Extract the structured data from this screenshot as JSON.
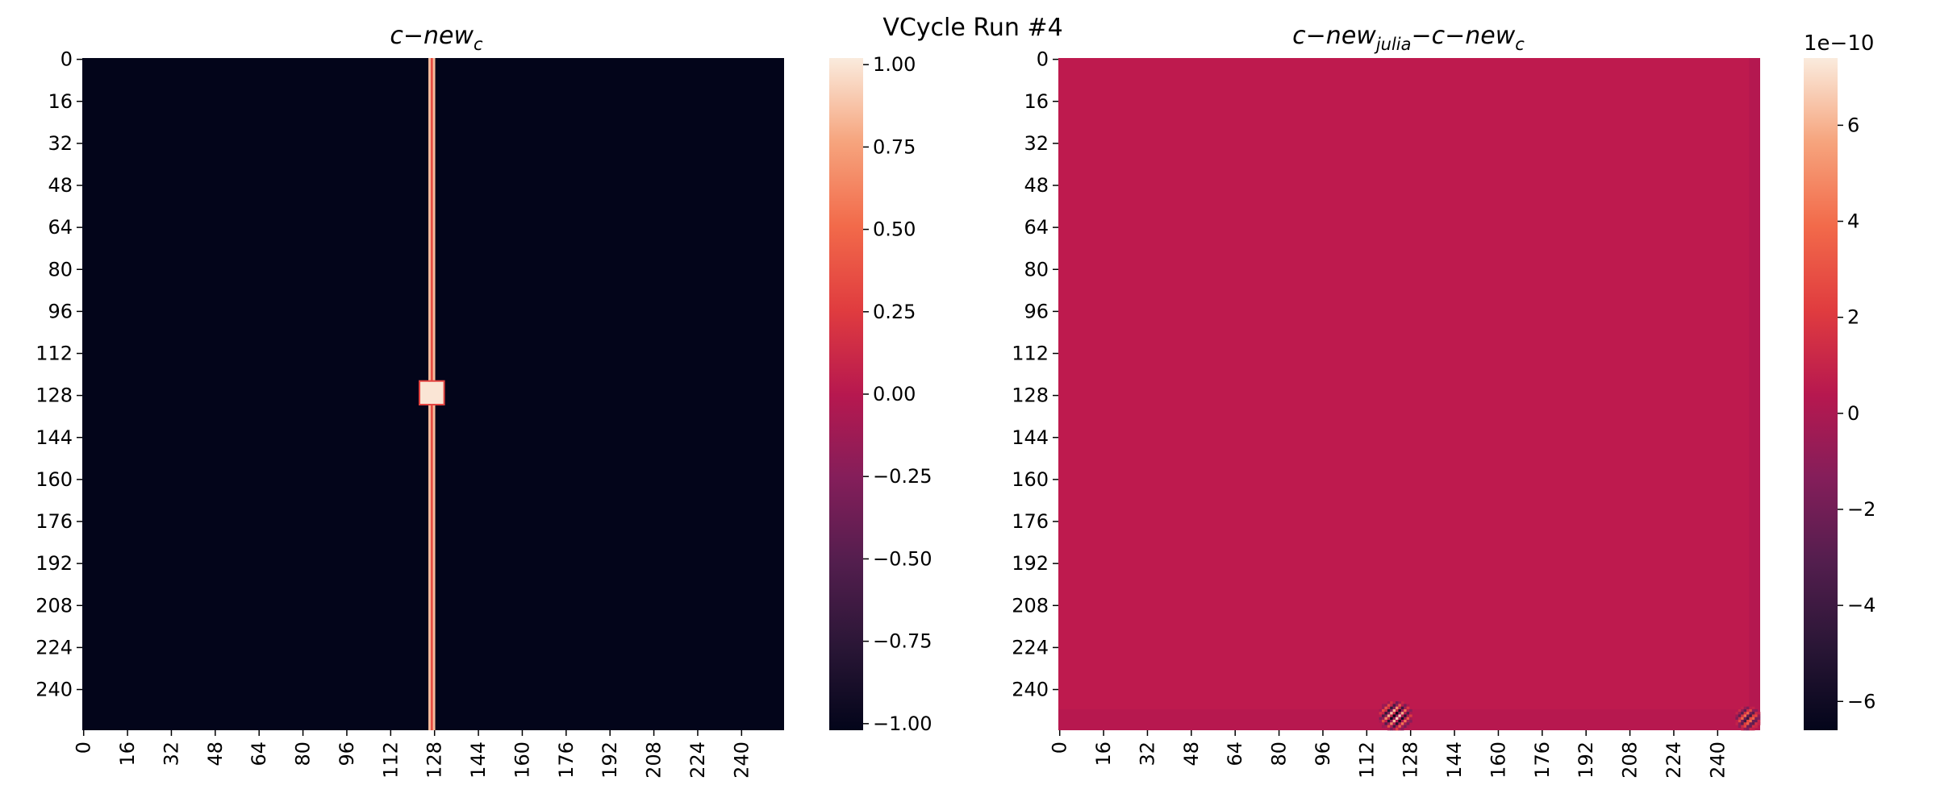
{
  "figure": {
    "suptitle": "VCycle Run #4"
  },
  "chart_data": [
    {
      "type": "heatmap",
      "title": "c−new_c",
      "title_main": "c−new",
      "title_sub": "c",
      "xlabel": "",
      "ylabel": "",
      "grid_size": 256,
      "xlim": [
        0,
        256
      ],
      "ylim": [
        0,
        256
      ],
      "x_tick_labels": [
        "0",
        "16",
        "32",
        "48",
        "64",
        "80",
        "96",
        "112",
        "128",
        "144",
        "160",
        "176",
        "192",
        "208",
        "224",
        "240"
      ],
      "y_tick_labels": [
        "0",
        "16",
        "32",
        "48",
        "64",
        "80",
        "96",
        "112",
        "128",
        "144",
        "160",
        "176",
        "192",
        "208",
        "224",
        "240"
      ],
      "background_value": -1.0,
      "features": [
        {
          "kind": "vertical_line",
          "col": 127,
          "value": 0.35,
          "outline_value": 0.85
        },
        {
          "kind": "square",
          "row_range": [
            123,
            132
          ],
          "col_range": [
            123,
            132
          ],
          "value": 1.0
        }
      ],
      "colorbar": {
        "colormap": "rocket",
        "range": [
          -1.02,
          1.02
        ],
        "ticks": [
          1.0,
          0.75,
          0.5,
          0.25,
          0.0,
          -0.25,
          -0.5,
          -0.75,
          -1.0
        ],
        "tick_labels": [
          "1.00",
          "0.75",
          "0.50",
          "0.25",
          "0.00",
          "−0.25",
          "−0.50",
          "−0.75",
          "−1.00"
        ]
      }
    },
    {
      "type": "heatmap",
      "title": "c−new_julia−c−new_c",
      "title_part1": "c−new",
      "title_sub1": "julia",
      "title_part2": "−c−new",
      "title_sub2": "c",
      "xlabel": "",
      "ylabel": "",
      "grid_size": 256,
      "xlim": [
        0,
        256
      ],
      "ylim": [
        0,
        256
      ],
      "x_tick_labels": [
        "0",
        "16",
        "32",
        "48",
        "64",
        "80",
        "96",
        "112",
        "128",
        "144",
        "160",
        "176",
        "192",
        "208",
        "224",
        "240"
      ],
      "y_tick_labels": [
        "0",
        "16",
        "32",
        "48",
        "64",
        "80",
        "96",
        "112",
        "128",
        "144",
        "160",
        "176",
        "192",
        "208",
        "224",
        "240"
      ],
      "background_value": 0.0,
      "features": [
        {
          "kind": "horizontal_band",
          "row_range": [
            248,
            256
          ],
          "value": 0.4
        },
        {
          "kind": "vertical_band",
          "col_range": [
            252,
            256
          ],
          "value": 0.3
        },
        {
          "kind": "oscillation",
          "row_range": [
            244,
            256
          ],
          "col_range": [
            116,
            129
          ],
          "amplitude": 7.0
        },
        {
          "kind": "oscillation",
          "row_range": [
            246,
            256
          ],
          "col_range": [
            246,
            256
          ],
          "amplitude": 5.0
        }
      ],
      "colorbar": {
        "colormap": "rocket",
        "range": [
          -6.6,
          7.4
        ],
        "ticks": [
          6,
          4,
          2,
          0,
          -2,
          -4,
          -6
        ],
        "tick_labels": [
          "6",
          "4",
          "2",
          "0",
          "−2",
          "−4",
          "−6"
        ],
        "offset_text": "1e−10"
      }
    }
  ]
}
